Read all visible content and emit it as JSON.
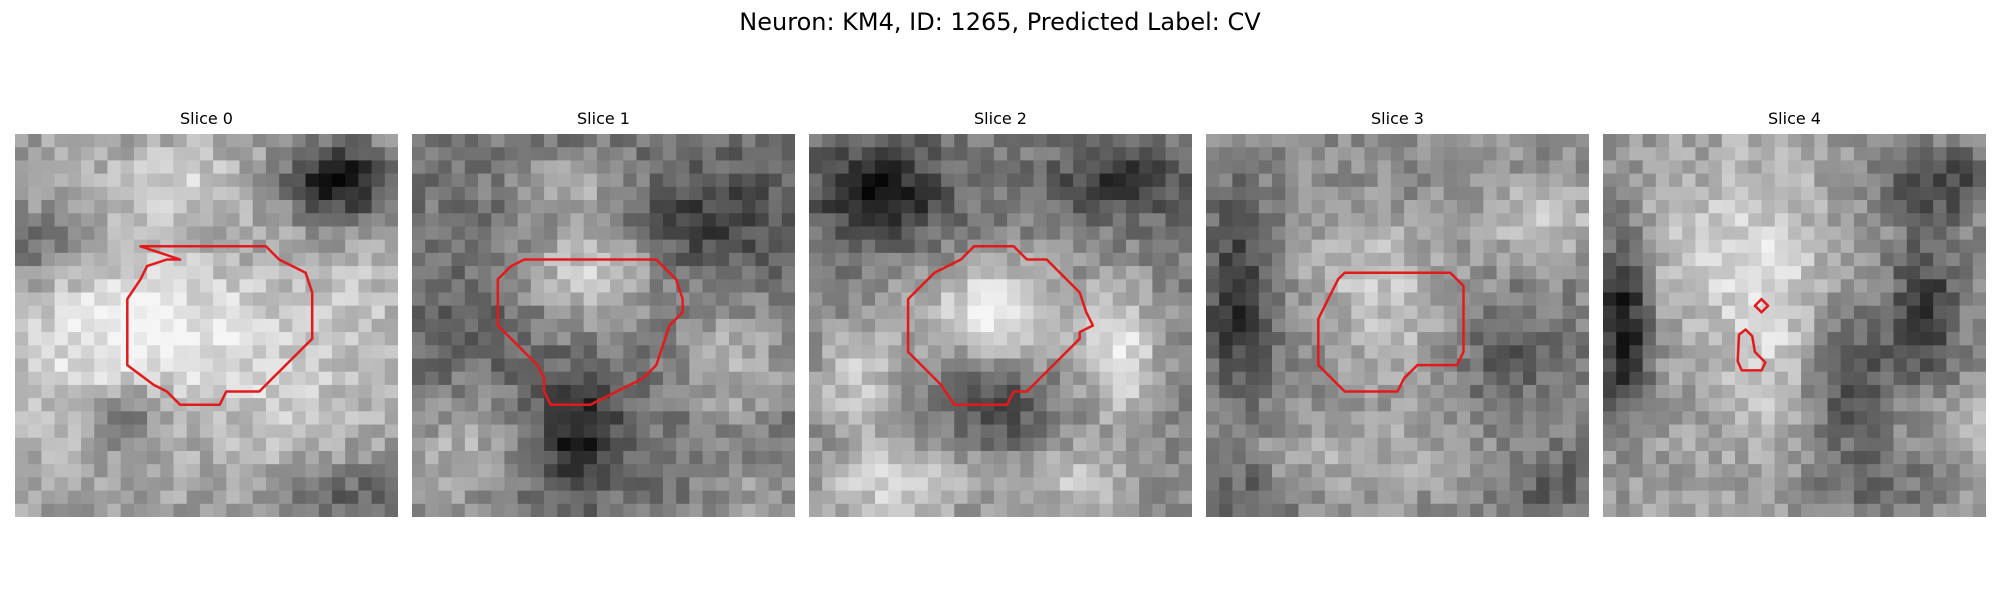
{
  "figure": {
    "suptitle": "Neuron: KM4, ID: 1265, Predicted Label: CV"
  },
  "colors": {
    "background": "#ffffff",
    "text": "#000000",
    "contour": "#e31a1c"
  },
  "panels": [
    {
      "title": "Slice 0"
    },
    {
      "title": "Slice 1"
    },
    {
      "title": "Slice 2"
    },
    {
      "title": "Slice 3"
    },
    {
      "title": "Slice 4"
    }
  ]
}
